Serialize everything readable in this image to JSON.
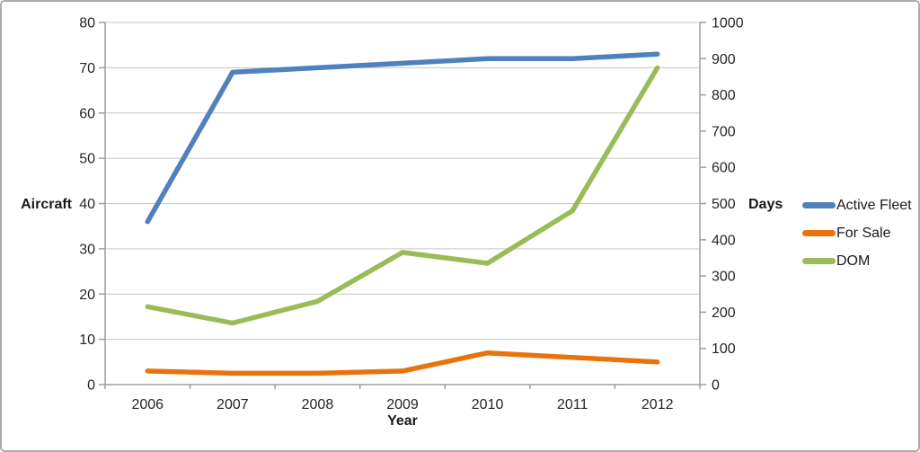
{
  "chart_data": {
    "type": "line",
    "x": [
      "2006",
      "2007",
      "2008",
      "2009",
      "2010",
      "2011",
      "2012"
    ],
    "xlabel": "Year",
    "left_axis": {
      "label": "Aircraft",
      "min": 0,
      "max": 80,
      "tick_step": 10,
      "ticks": [
        "0",
        "10",
        "20",
        "30",
        "40",
        "50",
        "60",
        "70",
        "80"
      ]
    },
    "right_axis": {
      "label": "Days",
      "min": 0,
      "max": 1000,
      "tick_step": 100,
      "ticks": [
        "0",
        "100",
        "200",
        "300",
        "400",
        "500",
        "600",
        "700",
        "800",
        "900",
        "1000"
      ]
    },
    "series": [
      {
        "name": "Active Fleet",
        "axis": "left",
        "color": "#4E81BD",
        "values": [
          36,
          69,
          70,
          71,
          72,
          72,
          73
        ]
      },
      {
        "name": "For Sale",
        "axis": "left",
        "color": "#E8720C",
        "values": [
          3,
          2.5,
          2.5,
          3,
          7,
          6,
          5
        ]
      },
      {
        "name": "DOM",
        "axis": "right",
        "color": "#9BBB59",
        "values": [
          215,
          170,
          230,
          365,
          335,
          480,
          875
        ]
      }
    ],
    "grid": "horizontal lines at every left-axis step (0-80 by 10)",
    "legend_position": "right",
    "title": ""
  },
  "colors": {
    "background": "#FFFFFF",
    "frame_border": "#ABABAB",
    "gridline": "#C6C6C6",
    "axis": "#9E9E9E",
    "text": "#262626"
  }
}
